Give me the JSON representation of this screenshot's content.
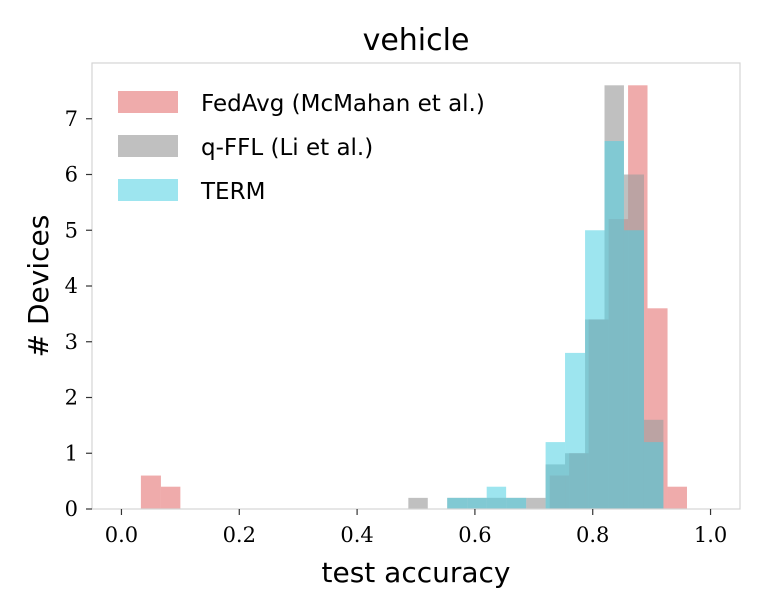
{
  "chart_data": {
    "type": "bar",
    "title": "vehicle",
    "xlabel": "test accuracy",
    "ylabel": "# Devices",
    "xlim": [
      -0.05,
      1.05
    ],
    "ylim": [
      0,
      8
    ],
    "xticks": [
      0.0,
      0.2,
      0.4,
      0.6,
      0.8,
      1.0
    ],
    "xtick_labels": [
      "0.0",
      "0.2",
      "0.4",
      "0.6",
      "0.8",
      "1.0"
    ],
    "yticks": [
      0,
      1,
      2,
      3,
      4,
      5,
      6,
      7
    ],
    "ytick_labels": [
      "0",
      "1",
      "2",
      "3",
      "4",
      "5",
      "6",
      "7"
    ],
    "grid": false,
    "legend_position": "top-left",
    "series": [
      {
        "name": "FedAvg (McMahan et al.)",
        "color": "#e57373",
        "opacity": 0.6,
        "bins": [
          {
            "x0": 0.033,
            "x1": 0.067,
            "value": 0.6
          },
          {
            "x0": 0.067,
            "x1": 0.1,
            "value": 0.4
          },
          {
            "x0": 0.727,
            "x1": 0.76,
            "value": 0.6
          },
          {
            "x0": 0.76,
            "x1": 0.793,
            "value": 1.0
          },
          {
            "x0": 0.793,
            "x1": 0.827,
            "value": 3.4
          },
          {
            "x0": 0.827,
            "x1": 0.86,
            "value": 5.2
          },
          {
            "x0": 0.86,
            "x1": 0.893,
            "value": 7.6
          },
          {
            "x0": 0.893,
            "x1": 0.927,
            "value": 3.6
          },
          {
            "x0": 0.927,
            "x1": 0.96,
            "value": 0.4
          }
        ]
      },
      {
        "name": "q-FFL (Li et al.)",
        "color": "#9e9e9e",
        "opacity": 0.65,
        "bins": [
          {
            "x0": 0.487,
            "x1": 0.52,
            "value": 0.2
          },
          {
            "x0": 0.553,
            "x1": 0.587,
            "value": 0.2
          },
          {
            "x0": 0.587,
            "x1": 0.62,
            "value": 0.2
          },
          {
            "x0": 0.62,
            "x1": 0.653,
            "value": 0.2
          },
          {
            "x0": 0.653,
            "x1": 0.687,
            "value": 0.2
          },
          {
            "x0": 0.687,
            "x1": 0.72,
            "value": 0.2
          },
          {
            "x0": 0.72,
            "x1": 0.753,
            "value": 0.8
          },
          {
            "x0": 0.753,
            "x1": 0.787,
            "value": 1.0
          },
          {
            "x0": 0.787,
            "x1": 0.82,
            "value": 3.4
          },
          {
            "x0": 0.82,
            "x1": 0.853,
            "value": 7.6
          },
          {
            "x0": 0.853,
            "x1": 0.887,
            "value": 6.0
          },
          {
            "x0": 0.887,
            "x1": 0.92,
            "value": 1.6
          }
        ]
      },
      {
        "name": "TERM",
        "color": "#4dd0e1",
        "opacity": 0.55,
        "bins": [
          {
            "x0": 0.553,
            "x1": 0.587,
            "value": 0.2
          },
          {
            "x0": 0.587,
            "x1": 0.62,
            "value": 0.2
          },
          {
            "x0": 0.62,
            "x1": 0.653,
            "value": 0.4
          },
          {
            "x0": 0.653,
            "x1": 0.687,
            "value": 0.2
          },
          {
            "x0": 0.687,
            "x1": 0.72,
            "value": 0.0
          },
          {
            "x0": 0.72,
            "x1": 0.753,
            "value": 1.2
          },
          {
            "x0": 0.753,
            "x1": 0.787,
            "value": 2.8
          },
          {
            "x0": 0.787,
            "x1": 0.82,
            "value": 5.0
          },
          {
            "x0": 0.82,
            "x1": 0.853,
            "value": 6.6
          },
          {
            "x0": 0.853,
            "x1": 0.887,
            "value": 5.0
          },
          {
            "x0": 0.887,
            "x1": 0.92,
            "value": 1.2
          }
        ]
      }
    ]
  }
}
